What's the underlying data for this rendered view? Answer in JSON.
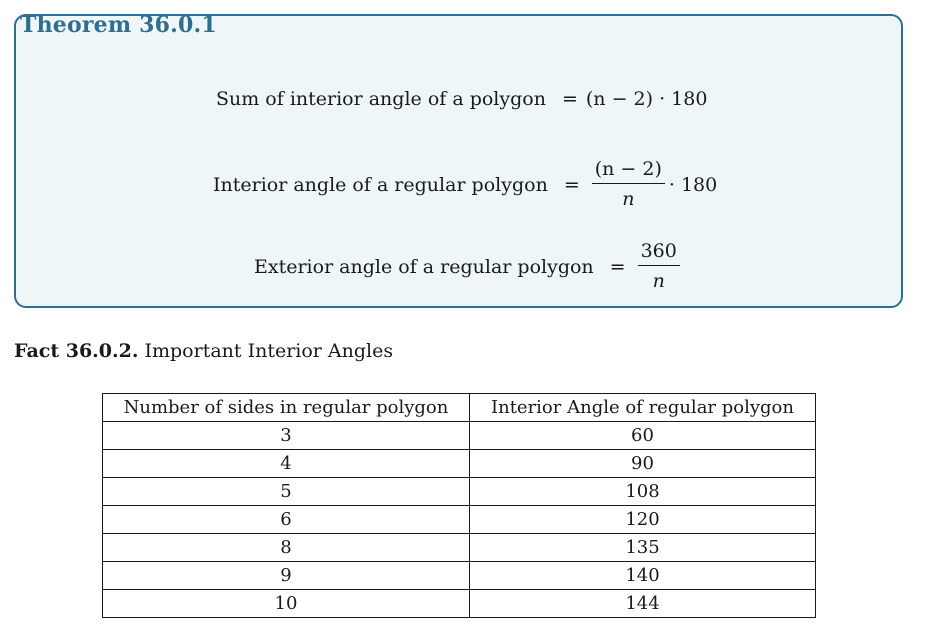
{
  "theorem": {
    "title": "Theorem 36.0.1",
    "eq_sum": {
      "lhs": "Sum of interior angle of a polygon",
      "rhs": "(n − 2) · 180"
    },
    "eq_interior": {
      "lhs": "Interior angle of a regular polygon",
      "num": "(n − 2)",
      "den": "n",
      "tail": "· 180"
    },
    "eq_exterior": {
      "lhs": "Exterior angle of a regular polygon",
      "num": "360",
      "den": "n"
    },
    "equals": "="
  },
  "fact": {
    "label": "Fact 36.0.2.",
    "title": "Important Interior Angles"
  },
  "table": {
    "headers": [
      "Number of sides in regular polygon",
      "Interior Angle of regular polygon"
    ],
    "rows": [
      [
        "3",
        "60"
      ],
      [
        "4",
        "90"
      ],
      [
        "5",
        "108"
      ],
      [
        "6",
        "120"
      ],
      [
        "8",
        "135"
      ],
      [
        "9",
        "140"
      ],
      [
        "10",
        "144"
      ]
    ]
  }
}
